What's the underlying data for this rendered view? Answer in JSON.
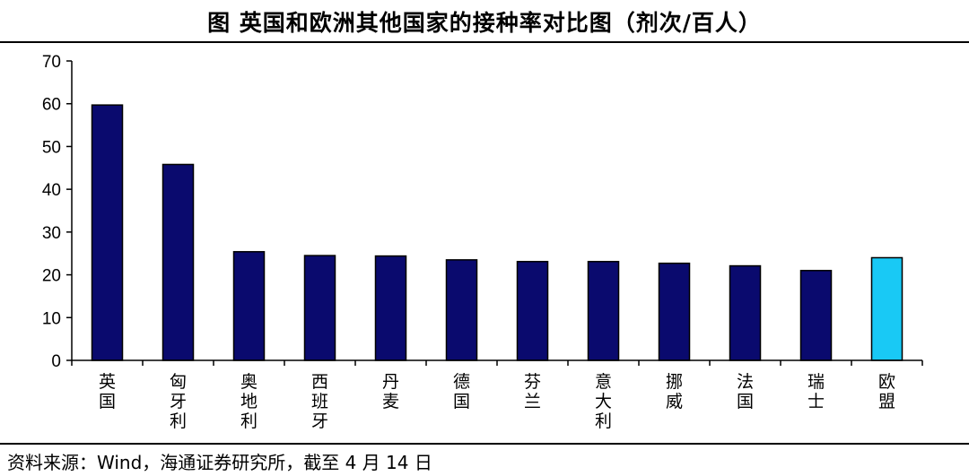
{
  "chart_data": {
    "type": "bar",
    "title": "图  英国和欧洲其他国家的接种率对比图（剂次/百人）",
    "categories": [
      "英国",
      "匈牙利",
      "奥地利",
      "西班牙",
      "丹麦",
      "德国",
      "芬兰",
      "意大利",
      "挪威",
      "法国",
      "瑞士",
      "欧盟"
    ],
    "values": [
      59.7,
      45.8,
      25.4,
      24.5,
      24.4,
      23.5,
      23.1,
      23.1,
      22.7,
      22.1,
      21.0,
      24.0
    ],
    "bar_colors": [
      "#0a0a6e",
      "#0a0a6e",
      "#0a0a6e",
      "#0a0a6e",
      "#0a0a6e",
      "#0a0a6e",
      "#0a0a6e",
      "#0a0a6e",
      "#0a0a6e",
      "#0a0a6e",
      "#0a0a6e",
      "#19c9f5"
    ],
    "ylim": [
      0,
      70
    ],
    "yticks": [
      0,
      10,
      20,
      30,
      40,
      50,
      60,
      70
    ],
    "xlabel": "",
    "ylabel": "",
    "grid": false,
    "legend": "none"
  },
  "source": "资料来源：Wind，海通证券研究所，截至 4 月 14 日"
}
